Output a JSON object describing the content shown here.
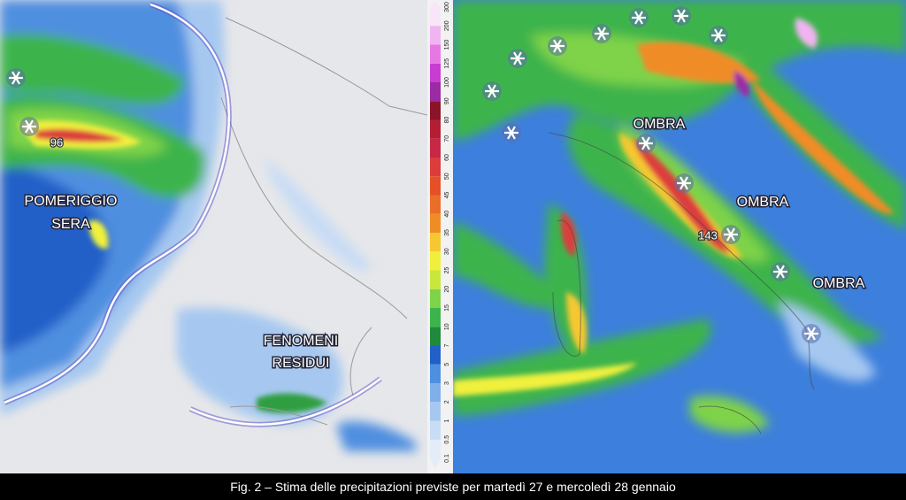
{
  "caption": "Fig. 2 – Stima delle precipitazioni previste per martedì 27 e mercoledì 28 gennaio",
  "left_map": {
    "labels": [
      [
        "POMERIGGIO",
        "SERA"
      ],
      [
        "FENOMENI",
        "RESIDUI"
      ]
    ],
    "max_label": "96"
  },
  "right_map": {
    "labels": [
      "OMBRA",
      "OMBRA",
      "OMBRA"
    ],
    "max_label": "143"
  },
  "colorbar": {
    "ticks": [
      0.1,
      0.5,
      1,
      2,
      3,
      5,
      7,
      10,
      15,
      20,
      25,
      30,
      35,
      40,
      45,
      50,
      60,
      70,
      80,
      90,
      100,
      125,
      150,
      200,
      300
    ],
    "colors": [
      "#e4ecf8",
      "#c8dcf5",
      "#a6c8f0",
      "#7fb0ea",
      "#4f8fe0",
      "#2060c8",
      "#1f8a3a",
      "#3cb44b",
      "#7ed348",
      "#c8e63c",
      "#f0f03c",
      "#f5c832",
      "#f08c28",
      "#eb6e28",
      "#e65028",
      "#dc3c3c",
      "#c82846",
      "#b41e32",
      "#8c1428",
      "#9b2aa5",
      "#c83cd2",
      "#e678e6",
      "#f0b4f0",
      "#f8e6f8"
    ]
  }
}
